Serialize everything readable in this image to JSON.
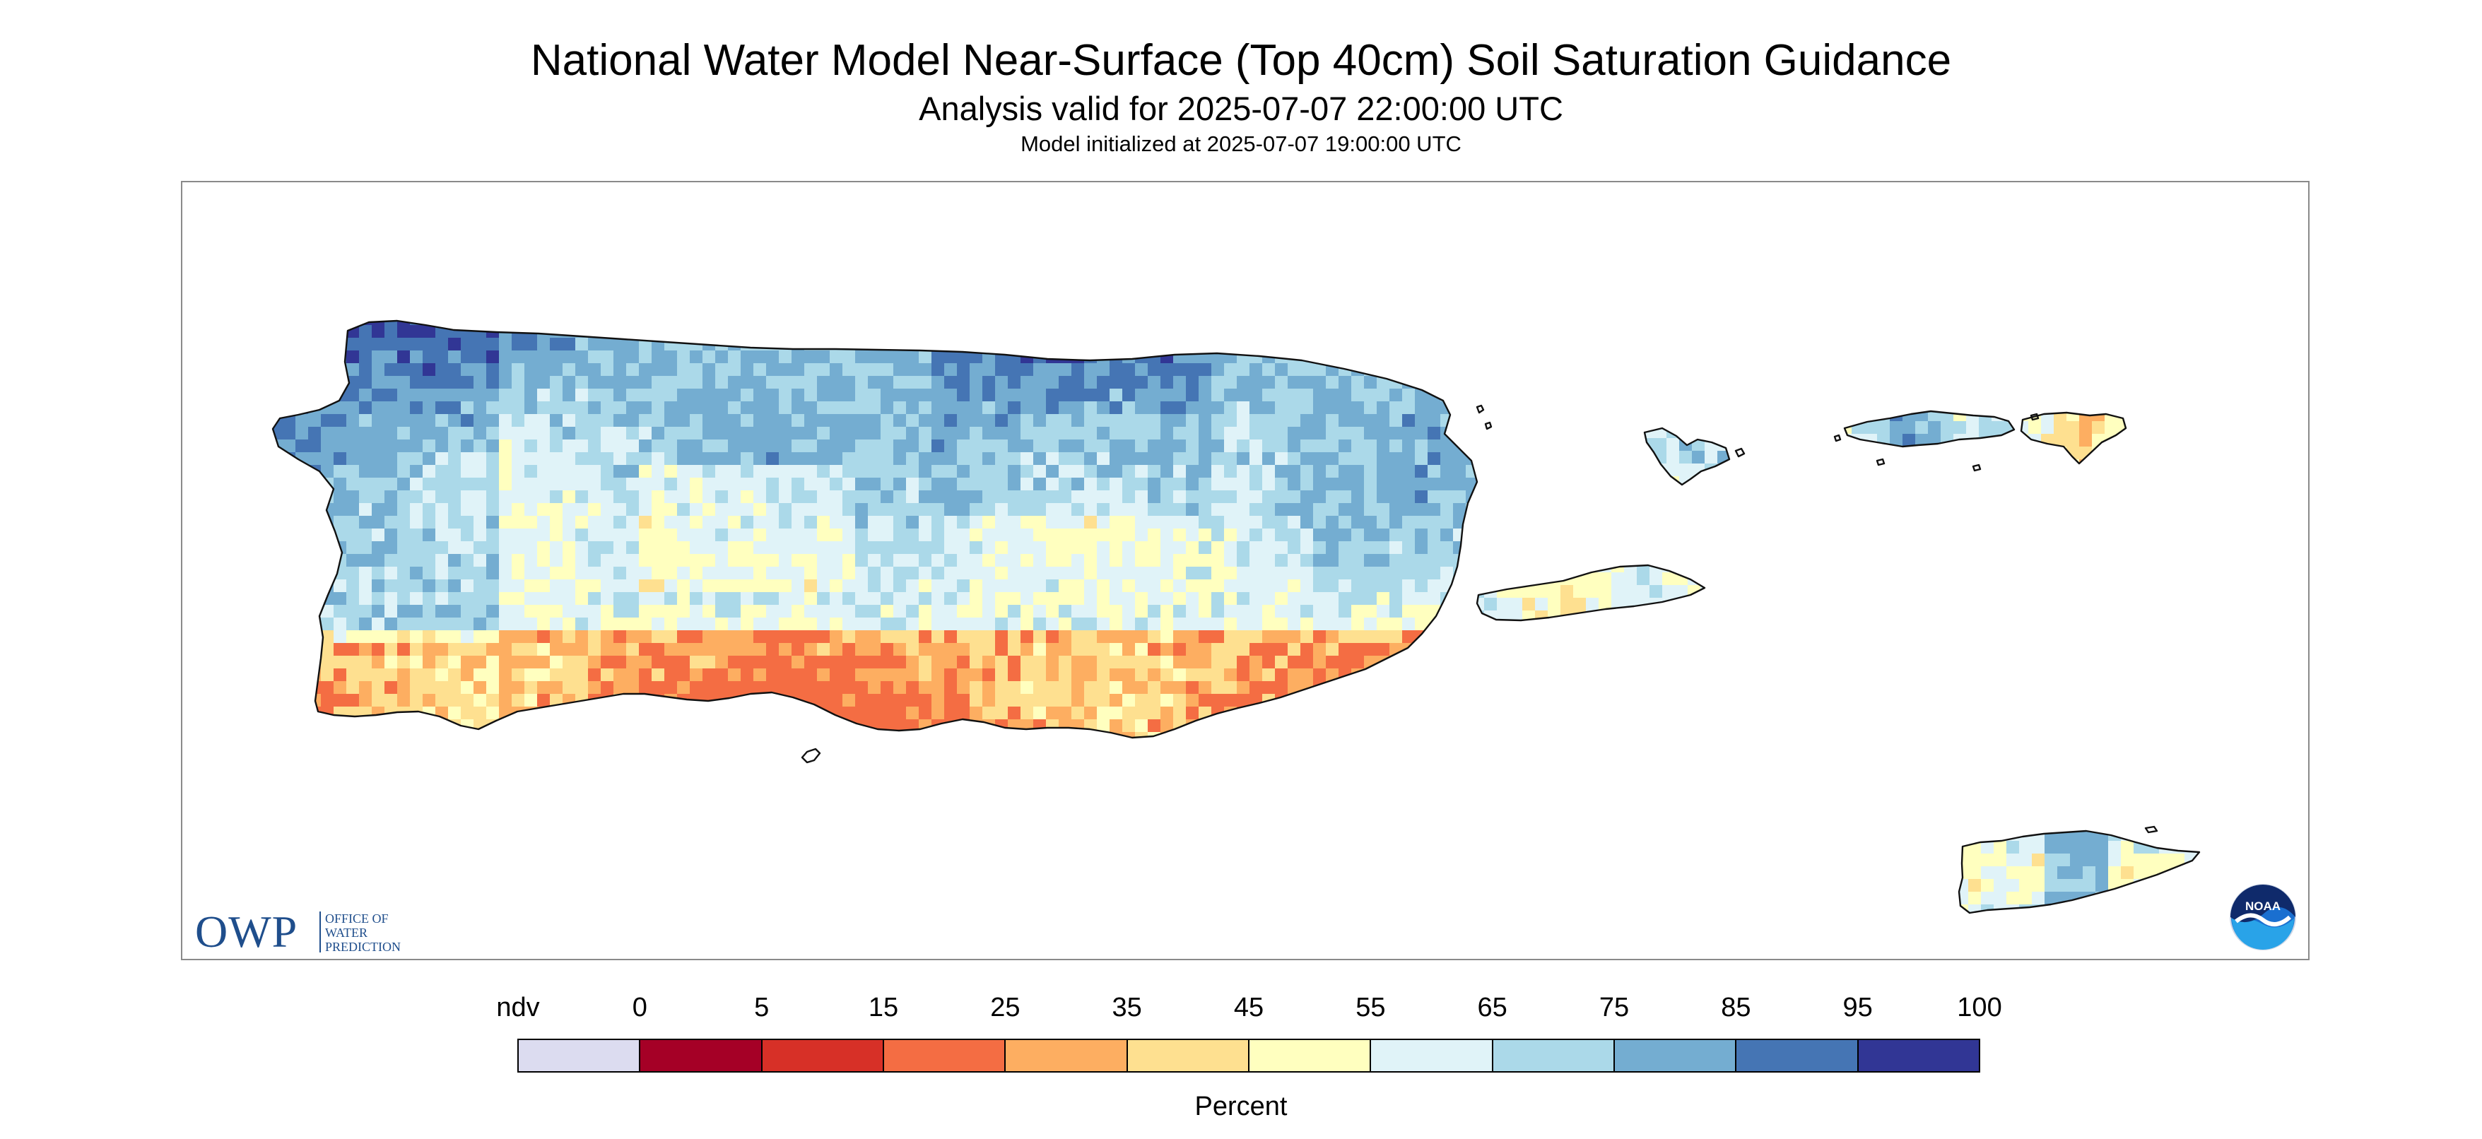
{
  "title": "National Water Model Near-Surface (Top 40cm) Soil Saturation Guidance",
  "subtitle": "Analysis valid for 2025-07-07 22:00:00 UTC",
  "init_line": "Model initialized at 2025-07-07 19:00:00 UTC",
  "map": {
    "region": "Puerto Rico and U.S. Virgin Islands",
    "field": "near-surface soil saturation (percent)",
    "islands": [
      "puerto-rico",
      "vieques",
      "culebra",
      "st-thomas-st-john",
      "st-croix",
      "mona-island"
    ]
  },
  "logos": {
    "owp_mark": "OWP",
    "owp_text": [
      "OFFICE OF",
      "WATER",
      "PREDICTION"
    ],
    "noaa_text": "NOAA"
  },
  "legend": {
    "unit_label": "Percent",
    "tick_labels": [
      "ndv",
      "0",
      "5",
      "15",
      "25",
      "35",
      "45",
      "55",
      "65",
      "75",
      "85",
      "95",
      "100"
    ],
    "colors": [
      "#dcdcf0",
      "#a50026",
      "#d73027",
      "#f46d43",
      "#fdae61",
      "#fee090",
      "#ffffbf",
      "#e0f3f8",
      "#abd9e9",
      "#74add1",
      "#4575b4",
      "#313695"
    ]
  }
}
